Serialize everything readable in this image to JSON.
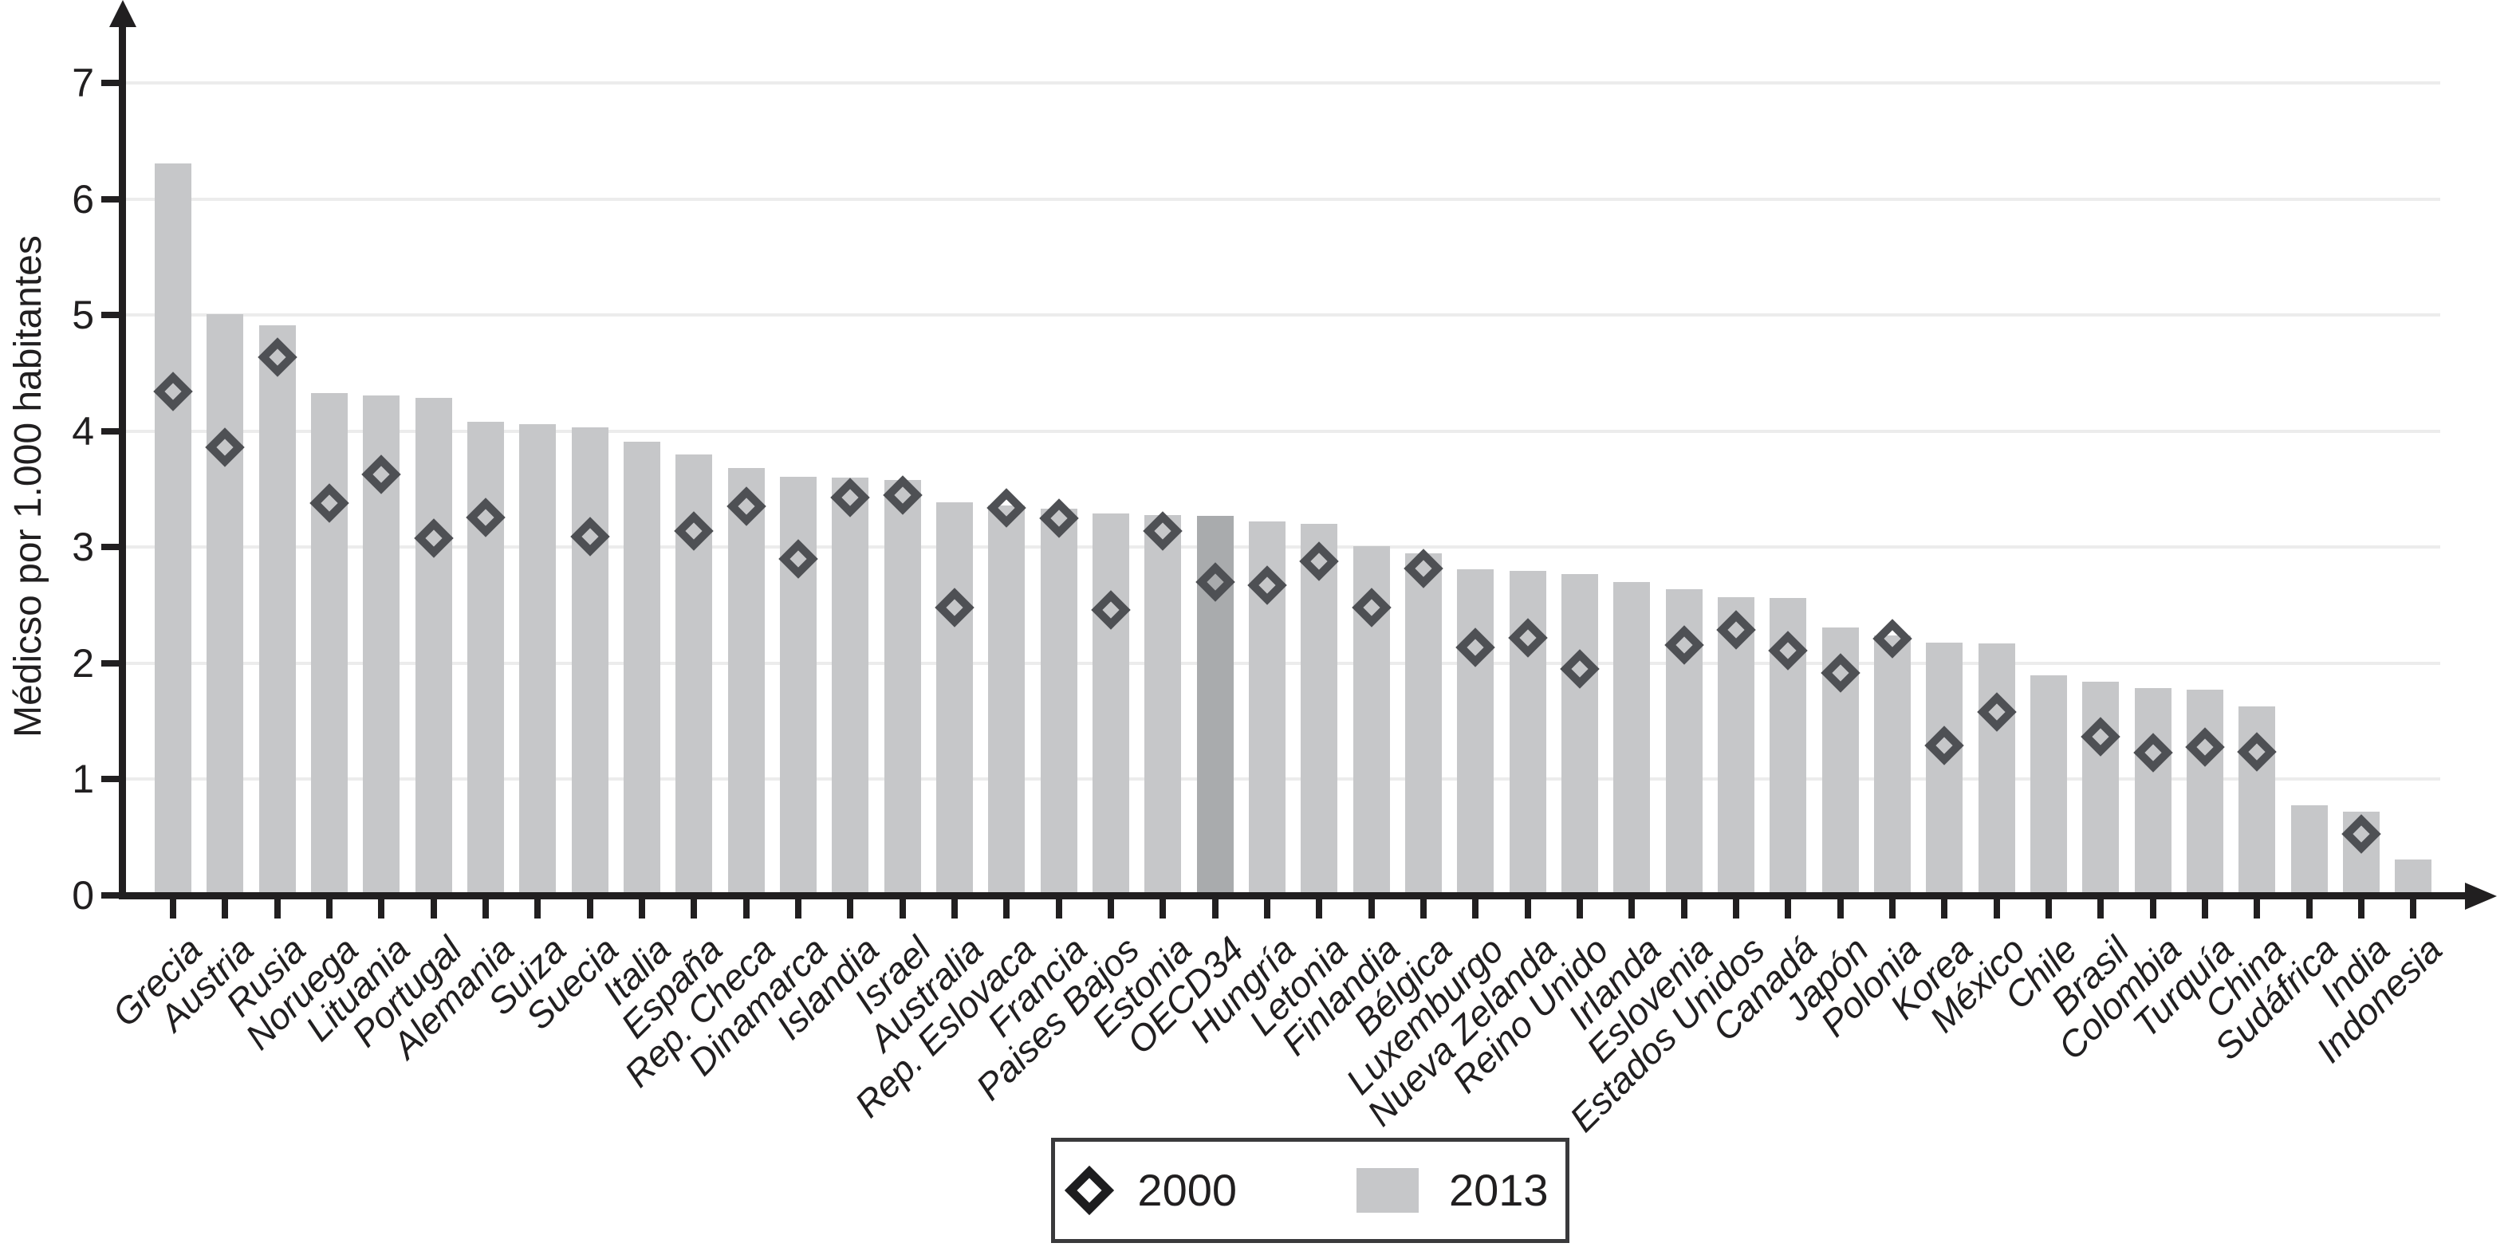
{
  "ylabel": "Médicso por 1.000 habitantes",
  "legend": {
    "year2000_label": "2000",
    "year2013_label": "2013"
  },
  "colors": {
    "bar": "#c6c7c9",
    "bar_highlight": "#a9abad",
    "diamond_stroke": "#4e5054",
    "legend_diamond_stroke": "#1d1d1f",
    "axis": "#211f20",
    "gridline": "#ececec",
    "background": "#ffffff"
  },
  "chart_data": {
    "type": "bar",
    "title": "",
    "xlabel": "",
    "ylabel": "Médicso por 1.000 habitantes",
    "ylim": [
      0,
      7
    ],
    "yticks": [
      0,
      1,
      2,
      3,
      4,
      5,
      6,
      7
    ],
    "grid": "horizontal",
    "legend_position": "bottom",
    "highlight_category": "OECD34",
    "categories": [
      "Grecia",
      "Austria",
      "Rusia",
      "Noruega",
      "Lituania",
      "Portugal",
      "Alemania",
      "Suiza",
      "Suecia",
      "Italia",
      "España",
      "Rep. Checa",
      "Dinamarca",
      "Islandia",
      "Israel",
      "Australia",
      "Rep. Eslovaca",
      "Francia",
      "Paises Bajos",
      "Estonia",
      "OECD34",
      "Hungría",
      "Letonia",
      "Finlandia",
      "Bélgica",
      "Luxemburgo",
      "Nueva Zelanda",
      "Reino Unido",
      "Irlanda",
      "Eslovenia",
      "Estados Unidos",
      "Canadá",
      "Japón",
      "Polonia",
      "Korea",
      "México",
      "Chile",
      "Brasil",
      "Colombia",
      "Turquía",
      "China",
      "Sudáfrica",
      "India",
      "Indonesia"
    ],
    "series": [
      {
        "name": "2013",
        "marker": "bar",
        "values": [
          6.31,
          5.01,
          4.91,
          4.33,
          4.31,
          4.29,
          4.08,
          4.06,
          4.03,
          3.91,
          3.8,
          3.68,
          3.61,
          3.6,
          3.58,
          3.39,
          3.36,
          3.33,
          3.29,
          3.28,
          3.27,
          3.22,
          3.2,
          3.01,
          2.95,
          2.81,
          2.8,
          2.77,
          2.7,
          2.64,
          2.57,
          2.56,
          2.31,
          2.24,
          2.18,
          2.17,
          1.9,
          1.84,
          1.79,
          1.77,
          1.63,
          0.78,
          0.72,
          0.31
        ]
      },
      {
        "name": "2000",
        "marker": "diamond",
        "values": [
          4.34,
          3.86,
          4.64,
          3.38,
          3.63,
          3.08,
          3.26,
          null,
          3.09,
          null,
          3.14,
          3.35,
          2.9,
          3.43,
          3.45,
          2.48,
          3.34,
          3.25,
          2.46,
          3.14,
          2.7,
          2.67,
          2.88,
          2.48,
          2.82,
          2.14,
          2.22,
          1.95,
          null,
          2.16,
          2.29,
          2.11,
          1.92,
          2.21,
          1.29,
          1.58,
          null,
          1.37,
          1.23,
          1.28,
          1.24,
          null,
          0.53,
          null
        ]
      }
    ]
  }
}
